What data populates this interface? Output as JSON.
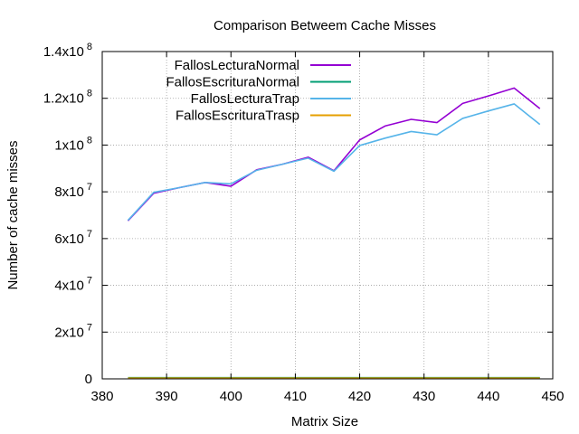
{
  "chart_data": {
    "type": "line",
    "title": "Comparison Betweem Cache Misses",
    "xlabel": "Matrix Size",
    "ylabel": "Number of cache misses",
    "xlim": [
      380,
      450
    ],
    "ylim": [
      0,
      140000000
    ],
    "grid": true,
    "legend_position": "top-left",
    "x_ticks": [
      {
        "value": 380,
        "label": "380"
      },
      {
        "value": 390,
        "label": "390"
      },
      {
        "value": 400,
        "label": "400"
      },
      {
        "value": 410,
        "label": "410"
      },
      {
        "value": 420,
        "label": "420"
      },
      {
        "value": 430,
        "label": "430"
      },
      {
        "value": 440,
        "label": "440"
      },
      {
        "value": 450,
        "label": "450"
      }
    ],
    "y_ticks": [
      {
        "value": 0,
        "base": "0",
        "exp": ""
      },
      {
        "value": 20000000,
        "base": "2x10",
        "exp": "7"
      },
      {
        "value": 40000000,
        "base": "4x10",
        "exp": "7"
      },
      {
        "value": 60000000,
        "base": "6x10",
        "exp": "7"
      },
      {
        "value": 80000000,
        "base": "8x10",
        "exp": "7"
      },
      {
        "value": 100000000,
        "base": "1x10",
        "exp": "8"
      },
      {
        "value": 120000000,
        "base": "1.2x10",
        "exp": "8"
      },
      {
        "value": 140000000,
        "base": "1.4x10",
        "exp": "8"
      }
    ],
    "x": [
      384,
      388,
      392,
      396,
      400,
      404,
      408,
      412,
      416,
      420,
      424,
      428,
      432,
      436,
      440,
      444,
      448
    ],
    "series": [
      {
        "name": "FallosLecturaNormal",
        "color": "#9400d3",
        "values": [
          67600000,
          79400000,
          81800000,
          84000000,
          82400000,
          89400000,
          91800000,
          94800000,
          89000000,
          102200000,
          108200000,
          111000000,
          109600000,
          117800000,
          121000000,
          124400000,
          115600000
        ]
      },
      {
        "name": "FallosEscrituraNormal",
        "color": "#009e73",
        "values": [
          500000,
          500000,
          500000,
          500000,
          500000,
          500000,
          500000,
          500000,
          500000,
          500000,
          500000,
          500000,
          500000,
          500000,
          500000,
          500000,
          500000
        ]
      },
      {
        "name": "FallosLecturaTrap",
        "color": "#56b4e9",
        "values": [
          67800000,
          79800000,
          81800000,
          84000000,
          83400000,
          89200000,
          91800000,
          94400000,
          88800000,
          99800000,
          103000000,
          105800000,
          104400000,
          111400000,
          114600000,
          117600000,
          108800000
        ]
      },
      {
        "name": "FallosEscrituraTrasp",
        "color": "#e69f00",
        "values": [
          300000,
          300000,
          300000,
          300000,
          300000,
          300000,
          300000,
          300000,
          300000,
          300000,
          300000,
          300000,
          300000,
          300000,
          300000,
          300000,
          300000
        ]
      }
    ]
  }
}
